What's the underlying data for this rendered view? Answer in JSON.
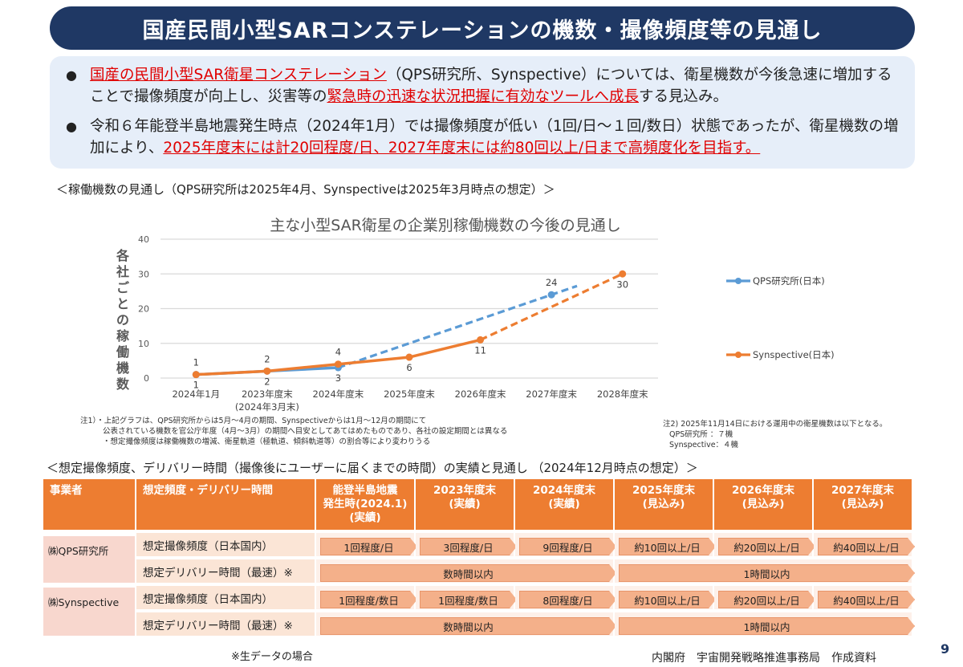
{
  "title": "国産民間小型SARコンステレーションの機数・撮像頻度等の見通し",
  "bullets": [
    {
      "segments": [
        {
          "text": "国産の民間小型SAR衛星コンステレーション",
          "red": true
        },
        {
          "text": "（QPS研究所、Synspective）については、衛星機数が今後急速に増加することで撮像頻度が向上し、災害等の",
          "red": false
        },
        {
          "text": "緊急時の迅速な状況把握に有効なツールへ成長",
          "red": true
        },
        {
          "text": "する見込み。",
          "red": false
        }
      ]
    },
    {
      "segments": [
        {
          "text": "令和６年能登半島地震発生時点（2024年1月）では撮像頻度が低い（1回/日～１回/数日）状態であったが、衛星機数の増加により、",
          "red": false
        },
        {
          "text": "2025年度末には計20回程度/日、2027年度末には約80回以上/日まで高頻度化を目指す。",
          "red": true
        }
      ]
    }
  ],
  "chart_heading": "＜稼働機数の見通し（QPS研究所は2025年4月、Synspectiveは2025年3月時点の想定）＞",
  "chart_data": {
    "type": "line",
    "title": "主な小型SAR衛星の企業別稼働機数の今後の見通し",
    "ylabel": "各社ごとの稼働機数",
    "categories": [
      "2024年1月",
      "2023年度末",
      "2024年度末",
      "2025年度末",
      "2026年度末",
      "2027年度末",
      "2028年度末"
    ],
    "category_sublabels": [
      "",
      "(2024年3月末)",
      "",
      "",
      "",
      "",
      ""
    ],
    "ylim": [
      0,
      40
    ],
    "yticks": [
      0,
      10,
      20,
      30,
      40
    ],
    "grid": true,
    "legend": "right",
    "series": [
      {
        "name": "QPS研究所(日本)",
        "color": "#5b9bd5",
        "actual": [
          1,
          2,
          3,
          null,
          null,
          null,
          null
        ],
        "forecast": [
          null,
          null,
          3,
          null,
          null,
          24,
          null
        ],
        "labels": [
          "1",
          "2",
          "3",
          "",
          "",
          "24",
          ""
        ]
      },
      {
        "name": "Synspective(日本)",
        "color": "#ed7d31",
        "actual": [
          1,
          2,
          4,
          6,
          11,
          null,
          null
        ],
        "forecast": [
          null,
          null,
          null,
          null,
          11,
          null,
          30
        ],
        "labels": [
          "1",
          "2",
          "4",
          "6",
          "11",
          "",
          "30"
        ]
      }
    ]
  },
  "notes_left": [
    "注1）・上記グラフは、QPS研究所からは5月～4月の期間、Synspectiveからは1月～12月の期間にて",
    "公表されている機数を官公庁年度（4月～3月）の期間へ目安としてあてはめたものであり、各社の設定期間とは異なる",
    "・想定撮像頻度は稼働機数の増減、衛星軌道（極軌道、傾斜軌道等）の割合等により変わりうる"
  ],
  "notes_right": [
    "注2) 2025年11月14日における運用中の衛星機数は以下となる。",
    "QPS研究所 ：７機",
    "Synspective：４機"
  ],
  "table_heading": "＜想定撮像頻度、デリバリー時間（撮像後にユーザーに届くまでの時間）の実績と見通し （2024年12月時点の想定）＞",
  "table": {
    "headers": [
      "事業者",
      "想定頻度・デリバリー時間",
      "能登半島地震\n発生時(2024.1)\n(実績)",
      "2023年度末\n(実績)",
      "2024年度末\n(実績)",
      "2025年度末\n(見込み)",
      "2026年度末\n(見込み)",
      "2027年度末\n(見込み)"
    ],
    "companies": [
      {
        "name": "㈱QPS研究所",
        "freq_label": "想定撮像頻度（日本国内）",
        "freq": [
          "1回程度/日",
          "3回程度/日",
          "9回程度/日",
          "約10回以上/日",
          "約20回以上/日",
          "約40回以上/日"
        ],
        "delivery_label": "想定デリバリー時間（最速）※",
        "delivery": [
          "数時間以内",
          "1時間以内"
        ]
      },
      {
        "name": "㈱Synspective",
        "freq_label": "想定撮像頻度（日本国内）",
        "freq": [
          "1回程度/数日",
          "1回程度/数日",
          "8回程度/日",
          "約10回以上/日",
          "約20回以上/日",
          "約40回以上/日"
        ],
        "delivery_label": "想定デリバリー時間（最速）※",
        "delivery": [
          "数時間以内",
          "1時間以内"
        ]
      }
    ]
  },
  "footnote": "※生データの場合",
  "source": "内閣府　宇宙開発戦略推進事務局　作成資料",
  "page_number": "9"
}
